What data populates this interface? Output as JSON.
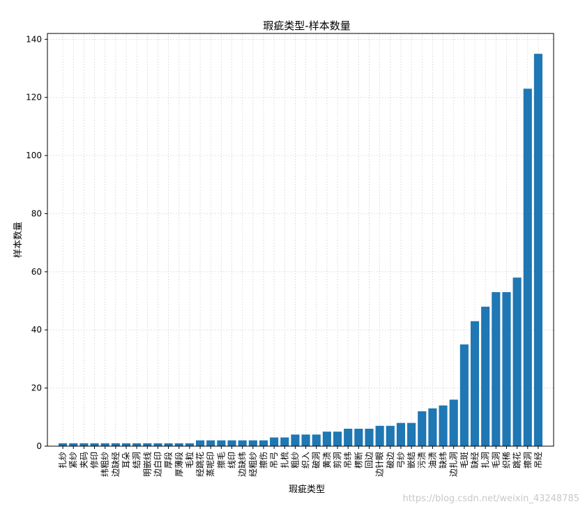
{
  "chart_data": {
    "type": "bar",
    "title": "瑕疵类型-样本数量",
    "xlabel": "瑕疵类型",
    "ylabel": "样本数量",
    "ylim": [
      0,
      142
    ],
    "yticks": [
      0,
      20,
      40,
      60,
      80,
      100,
      120,
      140
    ],
    "grid": true,
    "bar_color": "#1f77b4",
    "categories": [
      "扎纱",
      "紧纱",
      "夹码",
      "修印",
      "纬粗纱",
      "边缺经",
      "耳朵",
      "结洞",
      "明嵌线",
      "边白印",
      "厚段",
      "厚薄段",
      "毛粒",
      "经跳花",
      "蒸呢印",
      "擦毛",
      "线印",
      "边缺纬",
      "经粗纱",
      "擦伤",
      "吊弓",
      "扎梳",
      "粗纱",
      "织入",
      "破洞",
      "黄渍",
      "剪洞",
      "吊纬",
      "楞断",
      "回边",
      "边针眼",
      "破边",
      "弓纱",
      "嵌结",
      "污渍",
      "油渍",
      "缺纬",
      "边扎洞",
      "毛斑",
      "缺经",
      "扎洞",
      "毛洞",
      "织稀",
      "跳花",
      "擦洞",
      "吊经"
    ],
    "values": [
      1,
      1,
      1,
      1,
      1,
      1,
      1,
      1,
      1,
      1,
      1,
      1,
      1,
      2,
      2,
      2,
      2,
      2,
      2,
      2,
      3,
      3,
      4,
      4,
      4,
      5,
      5,
      6,
      6,
      6,
      7,
      7,
      8,
      8,
      12,
      13,
      14,
      16,
      35,
      43,
      48,
      53,
      53,
      58,
      123,
      135
    ]
  },
  "watermark": "https://blog.csdn.net/weixin_43248785"
}
